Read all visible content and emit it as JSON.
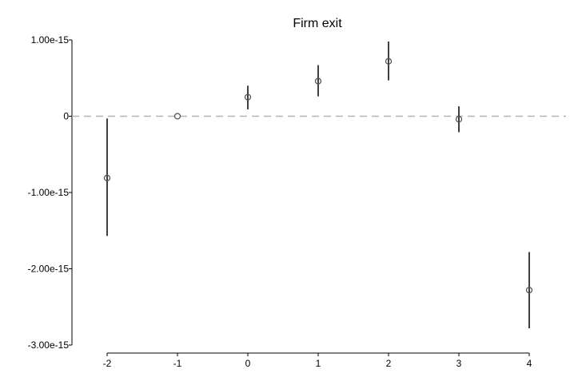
{
  "chart_data": {
    "type": "scatter",
    "title": "Firm exit",
    "xlabel": "",
    "ylabel": "",
    "x_ticks": [
      "-2",
      "-1",
      "0",
      "1",
      "2",
      "3",
      "4"
    ],
    "y_ticks": [
      {
        "value": 1e-15,
        "label": "1.00e-15"
      },
      {
        "value": 0,
        "label": "0"
      },
      {
        "value": -1e-15,
        "label": "-1.00e-15"
      },
      {
        "value": -2e-15,
        "label": "-2.00e-15"
      },
      {
        "value": -3e-15,
        "label": "-3.00e-15"
      }
    ],
    "xlim": [
      -2.5,
      4.5
    ],
    "ylim": [
      -3e-15,
      1e-15
    ],
    "reference_line": {
      "y": 0,
      "style": "dashed",
      "color": "#b3b3b3"
    },
    "series": [
      {
        "marker": "hollow-circle",
        "color": "#555555",
        "points": [
          {
            "x": -2,
            "y": -8.1e-16,
            "lo": -1.57e-15,
            "hi": -3e-17
          },
          {
            "x": -1,
            "y": 0,
            "lo": 0,
            "hi": 0
          },
          {
            "x": 0,
            "y": 2.5e-16,
            "lo": 9e-17,
            "hi": 4e-16
          },
          {
            "x": 1,
            "y": 4.6e-16,
            "lo": 2.6e-16,
            "hi": 6.7e-16
          },
          {
            "x": 2,
            "y": 7.2e-16,
            "lo": 4.7e-16,
            "hi": 9.8e-16
          },
          {
            "x": 3,
            "y": -4e-17,
            "lo": -2.1e-16,
            "hi": 1.3e-16
          },
          {
            "x": 4,
            "y": -2.28e-15,
            "lo": -2.78e-15,
            "hi": -1.78e-15
          }
        ]
      }
    ],
    "grid": false,
    "legend": "none"
  }
}
